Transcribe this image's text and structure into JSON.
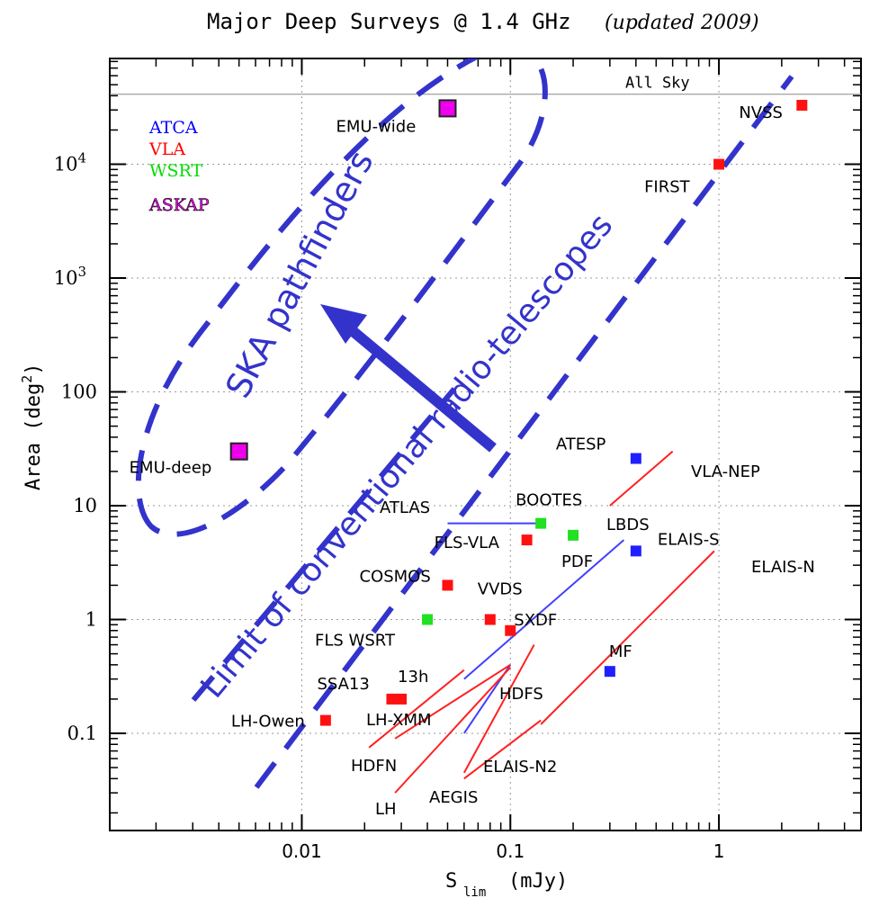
{
  "chart_data": {
    "type": "scatter",
    "title": "Major Deep Surveys @ 1.4 GHz",
    "title_note": "(updated 2009)",
    "xlabel": "S",
    "xlabel_sub": "lim",
    "xlabel_unit": "(mJy)",
    "ylabel": "Area (deg",
    "ylabel_sup": "2",
    "ylabel_close": ")",
    "xscale": "log",
    "yscale": "log",
    "xlim": [
      0.0012,
      4.8
    ],
    "ylim": [
      0.014,
      85000
    ],
    "grid": "dotted",
    "x_ticks": [
      {
        "value": 0.01,
        "label": "0.01"
      },
      {
        "value": 0.1,
        "label": "0.1"
      },
      {
        "value": 1,
        "label": "1"
      }
    ],
    "y_ticks": [
      {
        "value": 0.1,
        "label": "0.1"
      },
      {
        "value": 1,
        "label": "1"
      },
      {
        "value": 10,
        "label": "10"
      },
      {
        "value": 100,
        "label": "100"
      },
      {
        "value": 1000,
        "label": "10",
        "sup": "3"
      },
      {
        "value": 10000,
        "label": "10",
        "sup": "4"
      }
    ],
    "legend": {
      "placement": "top-left",
      "entries": [
        {
          "name": "ATCA",
          "color": "#0000ff"
        },
        {
          "name": "VLA",
          "color": "#ff0000"
        },
        {
          "name": "WSRT",
          "color": "#00dd00"
        },
        {
          "name": "ASKAP",
          "color": "#ff00ff"
        }
      ]
    },
    "all_sky": {
      "value": 41253,
      "label": "All Sky"
    },
    "series": [
      {
        "name": "ATCA",
        "color": "#1f1fff",
        "points": [
          {
            "label": "ATESP",
            "x": 0.4,
            "y": 26
          },
          {
            "label": "ELAIS-S",
            "x": 0.4,
            "y": 4
          },
          {
            "label": "MF",
            "x": 0.3,
            "y": 0.35
          }
        ]
      },
      {
        "name": "VLA",
        "color": "#ff1010",
        "points": [
          {
            "label": "NVSS",
            "x": 2.5,
            "y": 33000
          },
          {
            "label": "FIRST",
            "x": 1.0,
            "y": 10000
          },
          {
            "label": "FLS-VLA",
            "x": 0.12,
            "y": 5
          },
          {
            "label": "COSMOS",
            "x": 0.05,
            "y": 2
          },
          {
            "label": "VVDS",
            "x": 0.08,
            "y": 1
          },
          {
            "label": "SXDF",
            "x": 0.1,
            "y": 0.8
          },
          {
            "label": "SSA13",
            "x": 0.027,
            "y": 0.2
          },
          {
            "label": "13h",
            "x": 0.03,
            "y": 0.2
          },
          {
            "label": "LH-Owen",
            "x": 0.013,
            "y": 0.13
          }
        ]
      },
      {
        "name": "WSRT",
        "color": "#22e022",
        "points": [
          {
            "label": "BOOTES",
            "x": 0.14,
            "y": 7
          },
          {
            "label": "PDF",
            "x": 0.2,
            "y": 5.5
          },
          {
            "label": "FLS WSRT",
            "x": 0.04,
            "y": 1
          }
        ]
      },
      {
        "name": "ASKAP",
        "color": "#ee00ee",
        "points": [
          {
            "label": "EMU-wide",
            "x": 0.05,
            "y": 31000
          },
          {
            "label": "EMU-deep",
            "x": 0.005,
            "y": 30
          }
        ]
      }
    ],
    "trend_lines": [
      {
        "name": "VLA-NEP",
        "color": "#ff2020",
        "from": [
          0.3,
          10
        ],
        "to": [
          0.6,
          30
        ]
      },
      {
        "name": "ELAIS-N",
        "color": "#ff2020",
        "from": [
          0.14,
          0.12
        ],
        "to": [
          0.95,
          4
        ]
      },
      {
        "name": "LBDS",
        "color": "#4040ff",
        "from": [
          0.06,
          0.3
        ],
        "to": [
          0.35,
          5
        ]
      },
      {
        "name": "ATLAS",
        "color": "#4040ff",
        "from": [
          0.05,
          7
        ],
        "to": [
          0.145,
          7
        ]
      },
      {
        "name": "HDFS",
        "color": "#4040ff",
        "from": [
          0.06,
          0.1
        ],
        "to": [
          0.1,
          0.4
        ]
      },
      {
        "name": "HDFN",
        "color": "#ff2020",
        "from": [
          0.021,
          0.075
        ],
        "to": [
          0.06,
          0.36
        ]
      },
      {
        "name": "LH-XMM",
        "color": "#ff2020",
        "from": [
          0.028,
          0.09
        ],
        "to": [
          0.1,
          0.4
        ]
      },
      {
        "name": "LH",
        "color": "#ff2020",
        "from": [
          0.028,
          0.03
        ],
        "to": [
          0.1,
          0.38
        ]
      },
      {
        "name": "AEGIS",
        "color": "#ff2020",
        "from": [
          0.06,
          0.045
        ],
        "to": [
          0.13,
          0.6
        ]
      },
      {
        "name": "ELAIS-N2",
        "color": "#ff2020",
        "from": [
          0.06,
          0.04
        ],
        "to": [
          0.14,
          0.13
        ]
      }
    ],
    "extra_labels": [
      "ATLAS",
      "LBDS",
      "VLA-NEP",
      "ELAIS-N",
      "HDFS",
      "HDFN",
      "LH-XMM",
      "LH",
      "AEGIS",
      "ELAIS-N2"
    ],
    "annotations": {
      "pathfinders_label": "SKA pathfinders",
      "conventional_label": "Limit of conventional radio-telescopes",
      "arrow_color": "#3333cc",
      "dash_color": "#3333cc"
    }
  }
}
